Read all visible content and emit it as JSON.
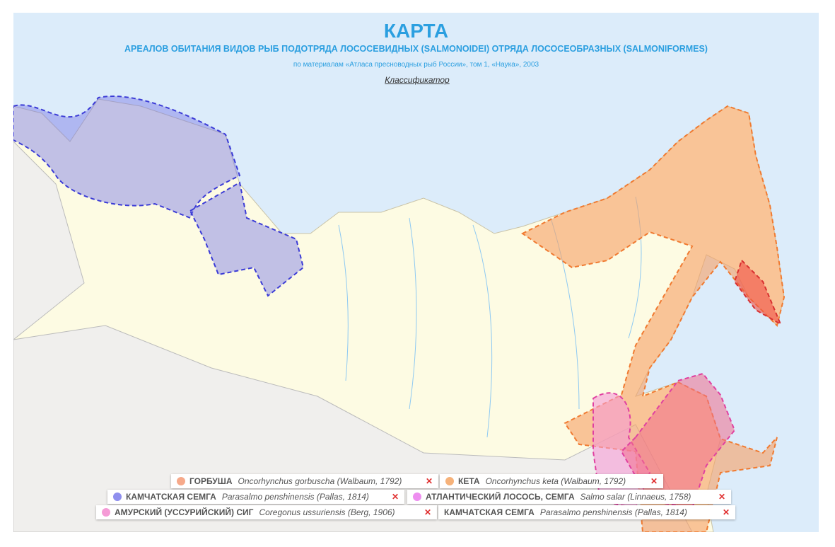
{
  "header": {
    "title": "КАРТА",
    "subtitle": "АРЕАЛОВ ОБИТАНИЯ ВИДОВ РЫБ ПОДОТРЯДА ЛОСОСЕВИДНЫХ (SALMONOIDEI) ОТРЯДА ЛОСОСЕОБРАЗНЫХ (SALMONIFORMES)",
    "source": "по материалам «Атласа пресноводных рыб России», том 1, «Наука», 2003",
    "classifier": "Классификатор"
  },
  "legend": {
    "remove": "✕",
    "items": [
      {
        "name": "ГОРБУША",
        "latin": "Oncorhynchus gorbuscha (Walbaum, 1792)",
        "color": "#f6a98a"
      },
      {
        "name": "КЕТА",
        "latin": "Oncorhynchus keta (Walbaum, 1792)",
        "color": "#f6b27a"
      },
      {
        "name": "КАМЧАТСКАЯ СЕМГА",
        "latin": "Parasalmo penshinensis (Pallas, 1814)",
        "color": "#8f8fee"
      },
      {
        "name": "АТЛАНТИЧЕСКИЙ ЛОСОСЬ, СЕМГА",
        "latin": "Salmo salar (Linnaeus, 1758)",
        "color": "#ee8ef0"
      },
      {
        "name": "АМУРСКИЙ (УССУРИЙСКИЙ) СИГ",
        "latin": "Coregonus ussuriensis (Berg, 1906)",
        "color": "#f59bd6"
      },
      {
        "name": "КАМЧАТСКАЯ СЕМГА",
        "latin": "Parasalmo penshinensis (Pallas, 1814)"
      }
    ]
  }
}
